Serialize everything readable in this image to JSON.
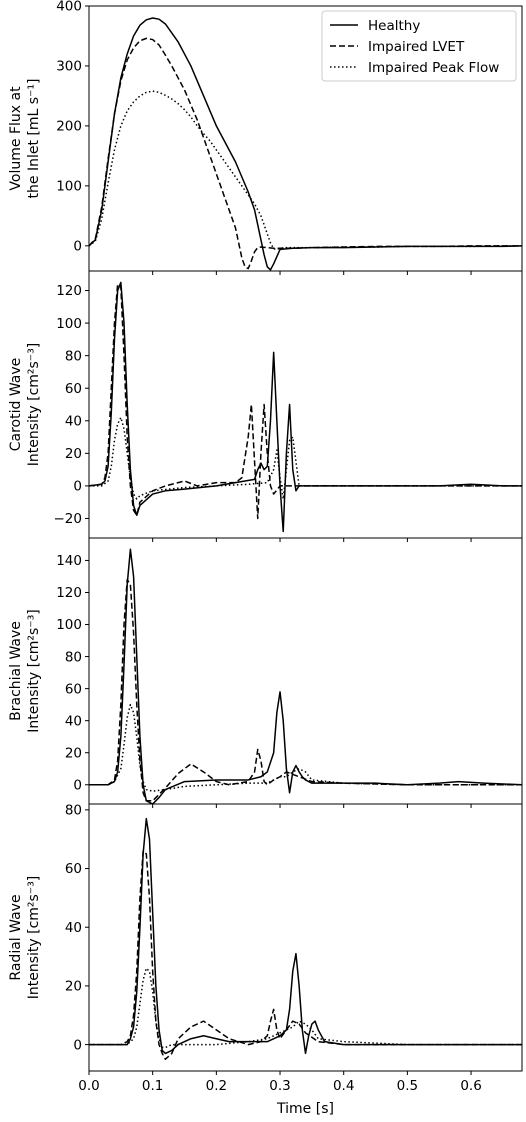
{
  "figure": {
    "xlabel": "Time [s]",
    "xlim": [
      0.0,
      0.68
    ],
    "xticks": [
      0.0,
      0.1,
      0.2,
      0.3,
      0.4,
      0.5,
      0.6
    ],
    "xtick_labels": [
      "0.0",
      "0.1",
      "0.2",
      "0.3",
      "0.4",
      "0.5",
      "0.6"
    ],
    "series_styles": [
      {
        "name": "Healthy",
        "dash": "solid",
        "color": "#000000"
      },
      {
        "name": "Impaired LVET",
        "dash": "dashed",
        "color": "#000000"
      },
      {
        "name": "Impaired Peak Flow",
        "dash": "dotted",
        "color": "#000000"
      }
    ],
    "legend_location": "top-right of first panel"
  },
  "chart_data": [
    {
      "type": "line",
      "ylabel_lines": [
        "Volume Flux at",
        "the Inlet [mL s⁻¹]"
      ],
      "ylim": [
        -42,
        400
      ],
      "yticks": [
        0,
        100,
        200,
        300,
        400
      ],
      "ytick_labels": [
        "0",
        "100",
        "200",
        "300",
        "400"
      ],
      "series": [
        {
          "name": "Healthy",
          "x": [
            0.0,
            0.01,
            0.02,
            0.03,
            0.04,
            0.05,
            0.06,
            0.07,
            0.08,
            0.09,
            0.1,
            0.11,
            0.12,
            0.13,
            0.14,
            0.15,
            0.16,
            0.17,
            0.18,
            0.19,
            0.2,
            0.21,
            0.22,
            0.23,
            0.24,
            0.25,
            0.26,
            0.265,
            0.27,
            0.275,
            0.28,
            0.285,
            0.29,
            0.3,
            0.32,
            0.35,
            0.4,
            0.45,
            0.5,
            0.55,
            0.6,
            0.65,
            0.68
          ],
          "y": [
            0,
            10,
            60,
            140,
            220,
            280,
            320,
            350,
            368,
            377,
            380,
            378,
            370,
            355,
            340,
            320,
            300,
            275,
            250,
            225,
            200,
            180,
            160,
            140,
            115,
            90,
            60,
            35,
            10,
            -15,
            -35,
            -40,
            -30,
            -6,
            -4,
            -3,
            -3,
            -2,
            -1,
            -1,
            -1,
            -1,
            0
          ]
        },
        {
          "name": "Impaired LVET",
          "x": [
            0.0,
            0.01,
            0.02,
            0.03,
            0.04,
            0.05,
            0.06,
            0.07,
            0.08,
            0.09,
            0.1,
            0.11,
            0.12,
            0.13,
            0.14,
            0.15,
            0.16,
            0.17,
            0.18,
            0.19,
            0.2,
            0.21,
            0.22,
            0.23,
            0.235,
            0.24,
            0.245,
            0.25,
            0.255,
            0.26,
            0.265,
            0.27,
            0.28,
            0.29,
            0.3,
            0.32,
            0.35,
            0.4,
            0.45,
            0.5,
            0.55,
            0.6,
            0.65,
            0.68
          ],
          "y": [
            0,
            12,
            65,
            145,
            220,
            275,
            310,
            330,
            342,
            346,
            344,
            335,
            318,
            300,
            280,
            260,
            235,
            210,
            180,
            150,
            120,
            90,
            60,
            30,
            5,
            -20,
            -35,
            -38,
            -25,
            -10,
            -3,
            -2,
            -3,
            -4,
            -4,
            -4,
            -3,
            -2,
            -1,
            -1,
            -1,
            0,
            0,
            0
          ]
        },
        {
          "name": "Impaired Peak Flow",
          "x": [
            0.0,
            0.01,
            0.02,
            0.03,
            0.04,
            0.05,
            0.06,
            0.07,
            0.08,
            0.09,
            0.1,
            0.11,
            0.12,
            0.13,
            0.14,
            0.15,
            0.16,
            0.17,
            0.18,
            0.19,
            0.2,
            0.21,
            0.22,
            0.23,
            0.24,
            0.25,
            0.26,
            0.27,
            0.275,
            0.28,
            0.285,
            0.29,
            0.295,
            0.3,
            0.31,
            0.35,
            0.4,
            0.45,
            0.5,
            0.55,
            0.6,
            0.65,
            0.68
          ],
          "y": [
            0,
            8,
            45,
            105,
            160,
            200,
            225,
            240,
            250,
            256,
            258,
            256,
            251,
            245,
            237,
            227,
            215,
            200,
            187,
            175,
            160,
            145,
            130,
            115,
            100,
            85,
            70,
            50,
            35,
            20,
            5,
            -5,
            -6,
            -4,
            -3,
            -3,
            -2,
            -2,
            -1,
            -1,
            -1,
            0,
            0
          ]
        }
      ]
    },
    {
      "type": "line",
      "ylabel_lines": [
        "Carotid Wave",
        "Intensity [cm²s⁻³]"
      ],
      "ylim": [
        -32,
        132
      ],
      "yticks": [
        -20,
        0,
        20,
        40,
        60,
        80,
        100,
        120
      ],
      "ytick_labels": [
        "−20",
        "0",
        "20",
        "40",
        "60",
        "80",
        "100",
        "120"
      ],
      "series": [
        {
          "name": "Healthy",
          "x": [
            0.0,
            0.02,
            0.025,
            0.03,
            0.035,
            0.04,
            0.045,
            0.05,
            0.055,
            0.06,
            0.065,
            0.07,
            0.075,
            0.08,
            0.1,
            0.12,
            0.15,
            0.2,
            0.23,
            0.26,
            0.265,
            0.27,
            0.275,
            0.28,
            0.285,
            0.29,
            0.295,
            0.3,
            0.305,
            0.31,
            0.315,
            0.32,
            0.325,
            0.33,
            0.34,
            0.4,
            0.45,
            0.5,
            0.55,
            0.6,
            0.65,
            0.68
          ],
          "y": [
            0,
            1,
            3,
            12,
            45,
            90,
            120,
            125,
            100,
            50,
            10,
            -12,
            -18,
            -12,
            -5,
            -3,
            -2,
            0,
            2,
            4,
            10,
            14,
            10,
            12,
            40,
            82,
            40,
            0,
            -28,
            20,
            50,
            10,
            -3,
            0,
            0,
            0,
            0,
            0,
            0,
            1,
            0,
            0
          ]
        },
        {
          "name": "Impaired LVET",
          "x": [
            0.0,
            0.02,
            0.025,
            0.03,
            0.035,
            0.04,
            0.045,
            0.05,
            0.055,
            0.06,
            0.065,
            0.07,
            0.075,
            0.08,
            0.1,
            0.12,
            0.15,
            0.17,
            0.2,
            0.23,
            0.24,
            0.25,
            0.255,
            0.26,
            0.265,
            0.27,
            0.275,
            0.28,
            0.285,
            0.29,
            0.3,
            0.31,
            0.34,
            0.4,
            0.45,
            0.5,
            0.55,
            0.6,
            0.65,
            0.68
          ],
          "y": [
            0,
            1,
            5,
            20,
            60,
            100,
            124,
            122,
            80,
            30,
            0,
            -15,
            -18,
            -10,
            -3,
            0,
            3,
            0,
            2,
            2,
            5,
            30,
            50,
            15,
            -20,
            20,
            50,
            20,
            0,
            -5,
            0,
            0,
            0,
            0,
            0,
            0,
            0,
            0,
            0,
            0
          ]
        },
        {
          "name": "Impaired Peak Flow",
          "x": [
            0.0,
            0.02,
            0.03,
            0.035,
            0.04,
            0.045,
            0.05,
            0.055,
            0.06,
            0.065,
            0.07,
            0.075,
            0.08,
            0.1,
            0.15,
            0.2,
            0.25,
            0.28,
            0.29,
            0.295,
            0.3,
            0.305,
            0.31,
            0.315,
            0.32,
            0.325,
            0.33,
            0.34,
            0.4,
            0.5,
            0.6,
            0.68
          ],
          "y": [
            0,
            0,
            3,
            12,
            28,
            38,
            42,
            35,
            20,
            5,
            -5,
            -8,
            -6,
            -3,
            -1,
            0,
            1,
            2,
            10,
            22,
            5,
            -8,
            10,
            28,
            30,
            15,
            0,
            0,
            0,
            0,
            0,
            0
          ]
        }
      ]
    },
    {
      "type": "line",
      "ylabel_lines": [
        "Brachial Wave",
        "Intensity [cm²s⁻³]"
      ],
      "ylim": [
        -12,
        154
      ],
      "yticks": [
        0,
        20,
        40,
        60,
        80,
        100,
        120,
        140
      ],
      "ytick_labels": [
        "0",
        "20",
        "40",
        "60",
        "80",
        "100",
        "120",
        "140"
      ],
      "series": [
        {
          "name": "Healthy",
          "x": [
            0.0,
            0.03,
            0.04,
            0.045,
            0.05,
            0.055,
            0.06,
            0.065,
            0.07,
            0.075,
            0.08,
            0.085,
            0.09,
            0.1,
            0.11,
            0.12,
            0.15,
            0.2,
            0.25,
            0.27,
            0.28,
            0.29,
            0.295,
            0.3,
            0.305,
            0.31,
            0.315,
            0.32,
            0.325,
            0.33,
            0.335,
            0.34,
            0.35,
            0.4,
            0.45,
            0.5,
            0.55,
            0.58,
            0.62,
            0.68
          ],
          "y": [
            0,
            0,
            2,
            8,
            30,
            75,
            125,
            147,
            130,
            80,
            30,
            0,
            -10,
            -12,
            -8,
            -3,
            2,
            3,
            3,
            5,
            8,
            20,
            45,
            58,
            40,
            10,
            -5,
            8,
            12,
            8,
            5,
            3,
            1,
            1,
            1,
            0,
            1,
            2,
            1,
            0
          ]
        },
        {
          "name": "Impaired LVET",
          "x": [
            0.0,
            0.03,
            0.04,
            0.045,
            0.05,
            0.055,
            0.06,
            0.065,
            0.07,
            0.075,
            0.08,
            0.085,
            0.09,
            0.1,
            0.12,
            0.14,
            0.16,
            0.18,
            0.2,
            0.22,
            0.25,
            0.26,
            0.265,
            0.27,
            0.275,
            0.28,
            0.29,
            0.3,
            0.31,
            0.33,
            0.35,
            0.4,
            0.5,
            0.6,
            0.68
          ],
          "y": [
            0,
            0,
            3,
            15,
            50,
            100,
            128,
            125,
            95,
            50,
            15,
            -5,
            -10,
            -10,
            -2,
            7,
            13,
            8,
            2,
            0,
            2,
            8,
            22,
            15,
            2,
            0,
            3,
            5,
            8,
            5,
            2,
            1,
            0,
            0,
            0
          ]
        },
        {
          "name": "Impaired Peak Flow",
          "x": [
            0.0,
            0.03,
            0.04,
            0.05,
            0.055,
            0.06,
            0.065,
            0.07,
            0.075,
            0.08,
            0.085,
            0.09,
            0.1,
            0.12,
            0.15,
            0.2,
            0.25,
            0.28,
            0.29,
            0.3,
            0.31,
            0.32,
            0.33,
            0.34,
            0.35,
            0.4,
            0.5,
            0.6,
            0.68
          ],
          "y": [
            0,
            0,
            2,
            10,
            25,
            42,
            50,
            45,
            30,
            12,
            2,
            -3,
            -4,
            -3,
            -1,
            0,
            1,
            1,
            3,
            5,
            5,
            8,
            10,
            8,
            3,
            1,
            0,
            0,
            0
          ]
        }
      ]
    },
    {
      "type": "line",
      "ylabel_lines": [
        "Radial Wave",
        "Intensity [cm²s⁻³]"
      ],
      "ylim": [
        -9,
        82
      ],
      "yticks": [
        0,
        20,
        40,
        60,
        80
      ],
      "ytick_labels": [
        "0",
        "20",
        "40",
        "60",
        "80"
      ],
      "series": [
        {
          "name": "Healthy",
          "x": [
            0.0,
            0.05,
            0.06,
            0.065,
            0.07,
            0.075,
            0.08,
            0.085,
            0.09,
            0.095,
            0.1,
            0.105,
            0.11,
            0.115,
            0.12,
            0.13,
            0.14,
            0.16,
            0.18,
            0.2,
            0.22,
            0.25,
            0.28,
            0.3,
            0.31,
            0.315,
            0.32,
            0.325,
            0.33,
            0.335,
            0.34,
            0.345,
            0.35,
            0.355,
            0.36,
            0.37,
            0.4,
            0.45,
            0.5,
            0.55,
            0.6,
            0.65,
            0.68
          ],
          "y": [
            0,
            0,
            0,
            2,
            6,
            18,
            40,
            65,
            77,
            70,
            45,
            20,
            5,
            -2,
            -3,
            -2,
            0,
            2,
            3,
            2,
            1,
            1,
            1,
            3,
            5,
            12,
            25,
            31,
            20,
            5,
            -3,
            3,
            7,
            8,
            5,
            1,
            0,
            0,
            0,
            0,
            0,
            0,
            0
          ]
        },
        {
          "name": "Impaired LVET",
          "x": [
            0.0,
            0.05,
            0.06,
            0.065,
            0.07,
            0.075,
            0.08,
            0.085,
            0.09,
            0.095,
            0.1,
            0.105,
            0.11,
            0.115,
            0.12,
            0.13,
            0.14,
            0.16,
            0.18,
            0.2,
            0.22,
            0.25,
            0.27,
            0.28,
            0.285,
            0.29,
            0.295,
            0.3,
            0.31,
            0.32,
            0.33,
            0.34,
            0.36,
            0.4,
            0.45,
            0.5,
            0.55,
            0.6,
            0.65,
            0.68
          ],
          "y": [
            0,
            0,
            1,
            3,
            10,
            25,
            50,
            66,
            65,
            50,
            25,
            8,
            0,
            -3,
            -5,
            -3,
            2,
            6,
            8,
            5,
            2,
            0,
            1,
            3,
            8,
            12,
            5,
            2,
            5,
            8,
            7,
            4,
            1,
            0,
            0,
            0,
            0,
            0,
            0,
            0
          ]
        },
        {
          "name": "Impaired Peak Flow",
          "x": [
            0.0,
            0.06,
            0.07,
            0.075,
            0.08,
            0.085,
            0.09,
            0.095,
            0.1,
            0.105,
            0.11,
            0.115,
            0.12,
            0.13,
            0.15,
            0.2,
            0.25,
            0.28,
            0.3,
            0.31,
            0.32,
            0.33,
            0.34,
            0.35,
            0.36,
            0.4,
            0.5,
            0.6,
            0.68
          ],
          "y": [
            0,
            0,
            2,
            6,
            14,
            22,
            26,
            25,
            18,
            8,
            2,
            -1,
            -1,
            0,
            0,
            0,
            1,
            2,
            4,
            5,
            6,
            8,
            7,
            5,
            2,
            1,
            0,
            0,
            0
          ]
        }
      ]
    }
  ]
}
